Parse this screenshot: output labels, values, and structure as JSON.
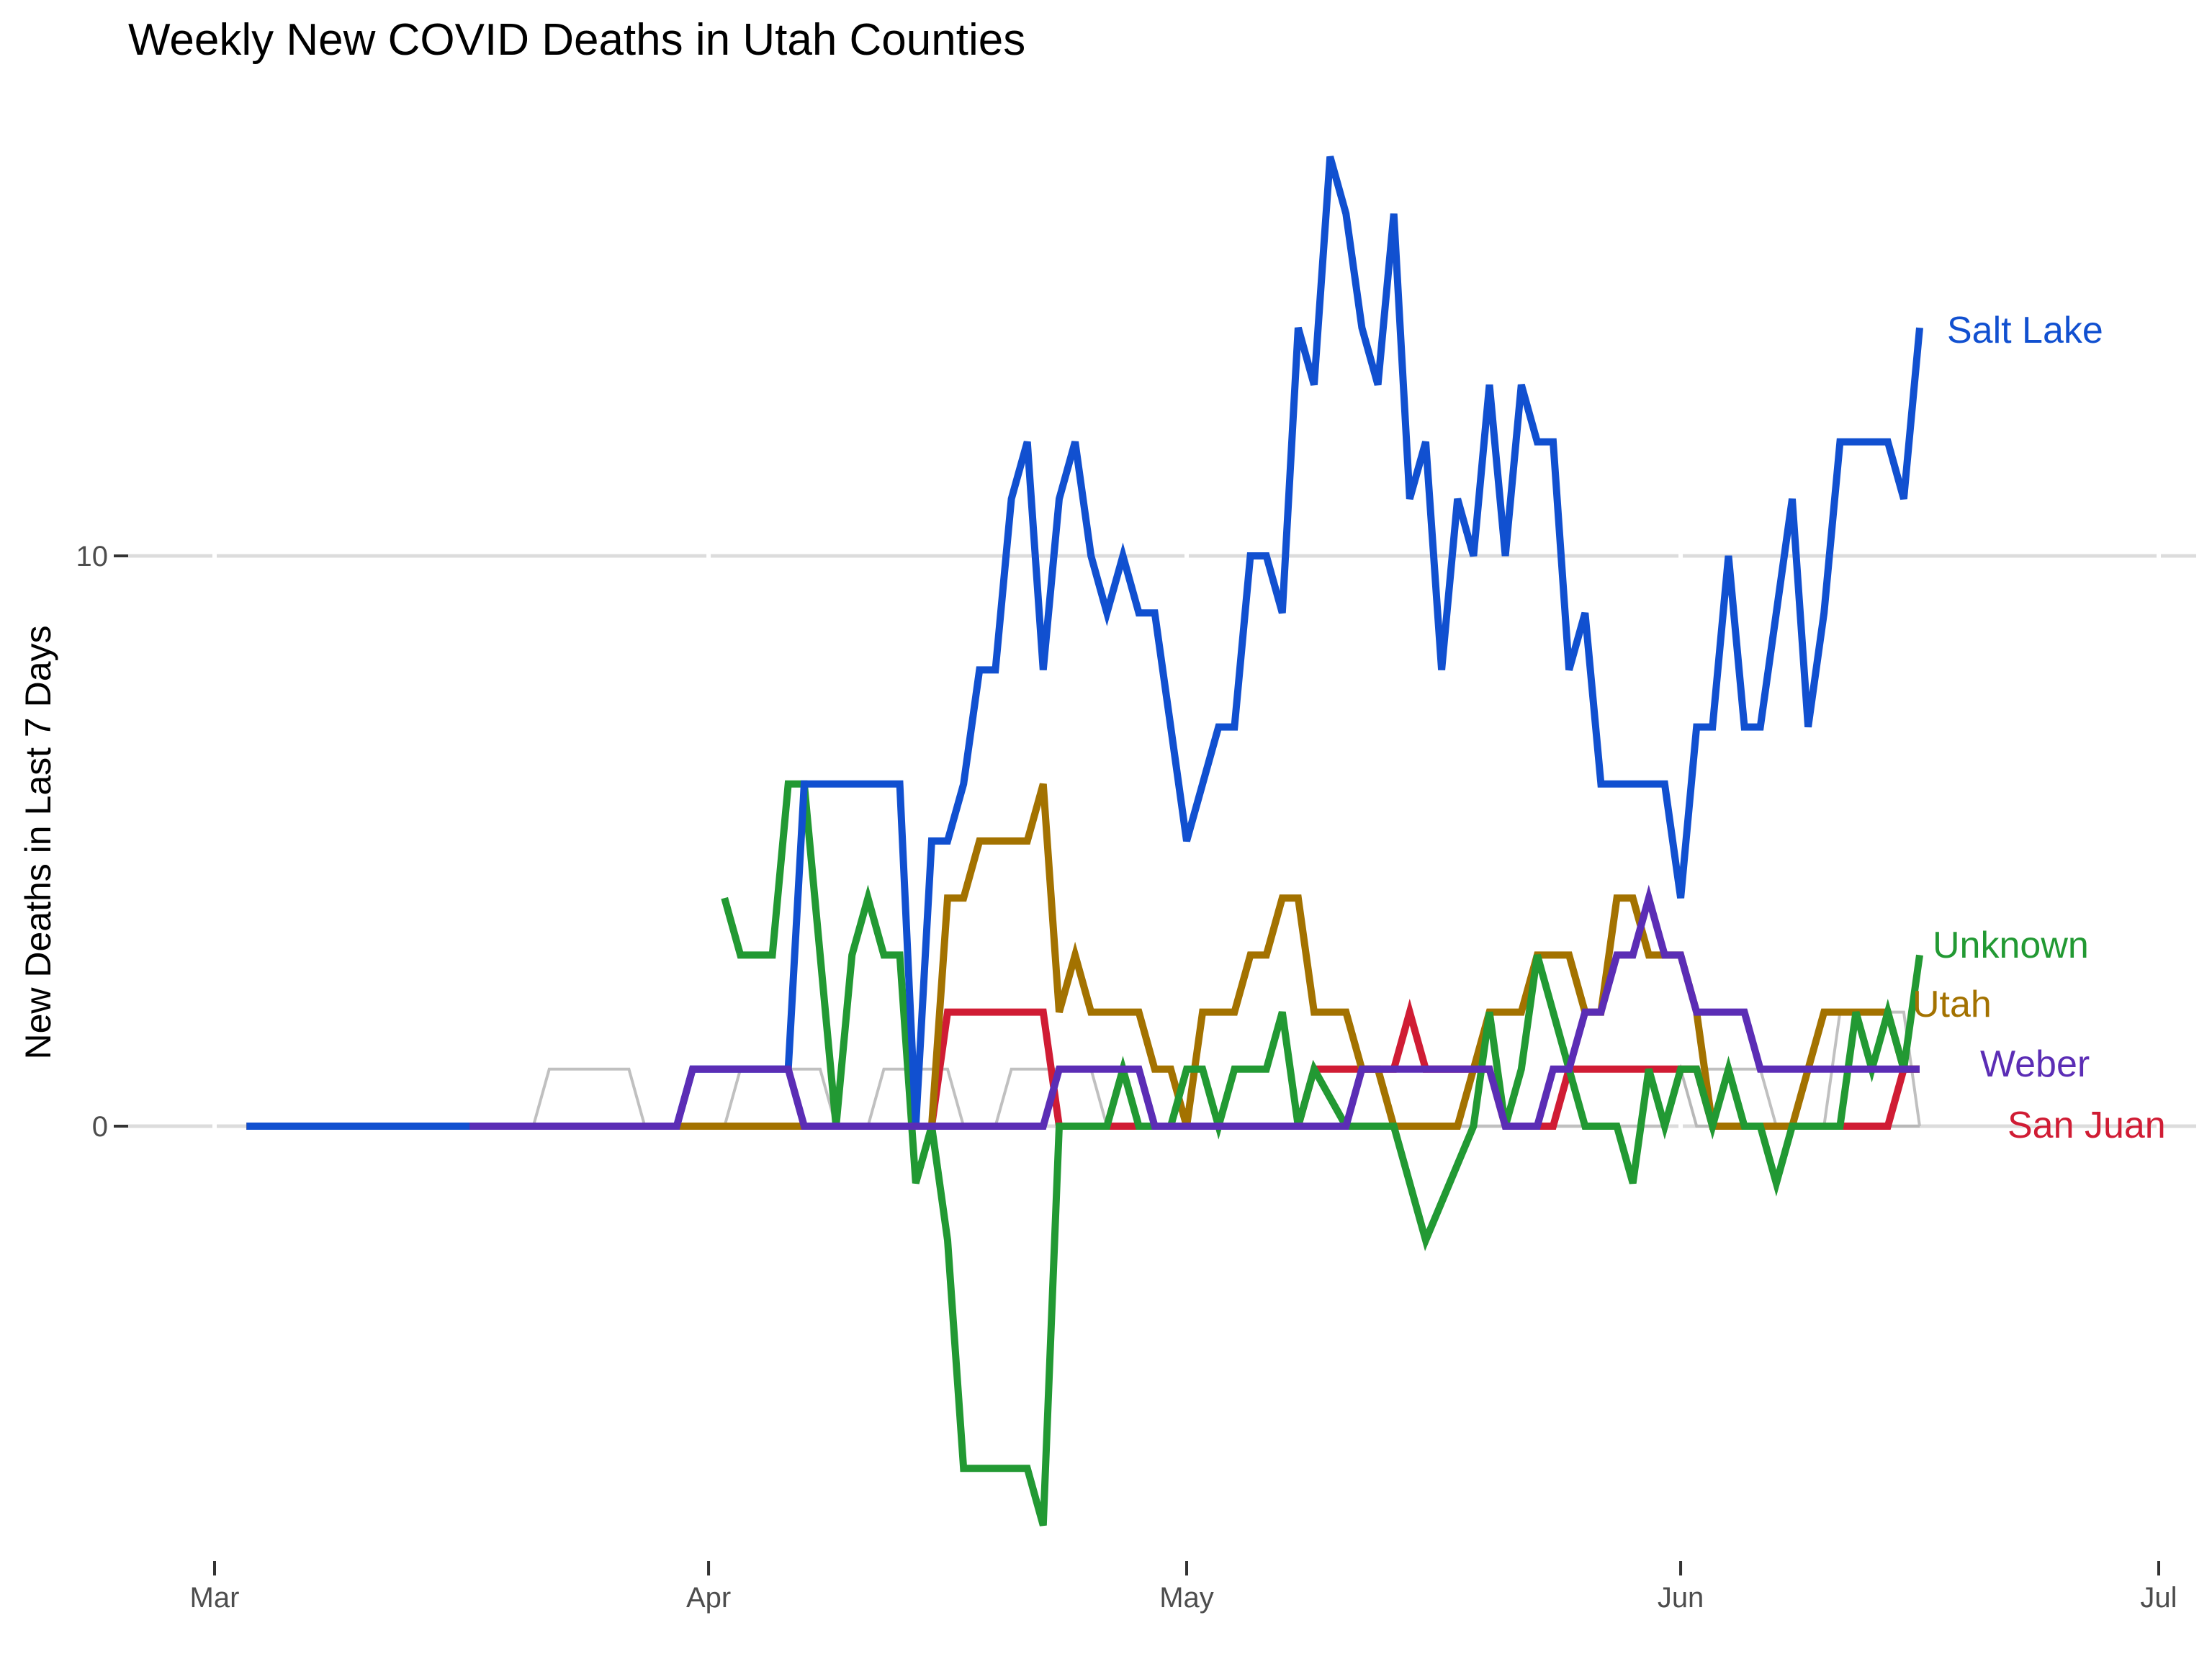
{
  "chart_data": {
    "type": "line",
    "title": "Weekly New COVID Deaths in Utah Counties",
    "xlabel": "",
    "ylabel": "New Deaths in Last 7 Days",
    "x_ticks": [
      {
        "label": "Mar",
        "date": "2020-03-01"
      },
      {
        "label": "Apr",
        "date": "2020-04-01"
      },
      {
        "label": "May",
        "date": "2020-05-01"
      },
      {
        "label": "Jun",
        "date": "2020-06-01"
      },
      {
        "label": "Jul",
        "date": "2020-07-01"
      }
    ],
    "y_ticks": [
      0,
      10
    ],
    "xlim": [
      "2020-03-01",
      "2020-07-01"
    ],
    "ylim": [
      -7.5,
      17.5
    ],
    "grid": true,
    "legend": "direct labels at line ends (right)",
    "background_series_color": "#c0c0c0",
    "series": [
      {
        "name": "Salt Lake",
        "color": "#1150d0",
        "points": [
          [
            "2020-03-03",
            0
          ],
          [
            "2020-03-30",
            0
          ],
          [
            "2020-03-31",
            1
          ],
          [
            "2020-04-06",
            1
          ],
          [
            "2020-04-07",
            6
          ],
          [
            "2020-04-13",
            6
          ],
          [
            "2020-04-14",
            0
          ],
          [
            "2020-04-15",
            5
          ],
          [
            "2020-04-16",
            5
          ],
          [
            "2020-04-17",
            6
          ],
          [
            "2020-04-18",
            8
          ],
          [
            "2020-04-19",
            8
          ],
          [
            "2020-04-20",
            11
          ],
          [
            "2020-04-21",
            12
          ],
          [
            "2020-04-22",
            8
          ],
          [
            "2020-04-23",
            11
          ],
          [
            "2020-04-24",
            12
          ],
          [
            "2020-04-25",
            10
          ],
          [
            "2020-04-26",
            9
          ],
          [
            "2020-04-27",
            10
          ],
          [
            "2020-04-28",
            9
          ],
          [
            "2020-04-29",
            9
          ],
          [
            "2020-04-30",
            7
          ],
          [
            "2020-05-01",
            5
          ],
          [
            "2020-05-02",
            6
          ],
          [
            "2020-05-03",
            7
          ],
          [
            "2020-05-04",
            7
          ],
          [
            "2020-05-05",
            10
          ],
          [
            "2020-05-06",
            10
          ],
          [
            "2020-05-07",
            9
          ],
          [
            "2020-05-08",
            14
          ],
          [
            "2020-05-09",
            13
          ],
          [
            "2020-05-10",
            17
          ],
          [
            "2020-05-11",
            16
          ],
          [
            "2020-05-12",
            14
          ],
          [
            "2020-05-13",
            13
          ],
          [
            "2020-05-14",
            16
          ],
          [
            "2020-05-15",
            11
          ],
          [
            "2020-05-16",
            12
          ],
          [
            "2020-05-17",
            8
          ],
          [
            "2020-05-18",
            11
          ],
          [
            "2020-05-19",
            10
          ],
          [
            "2020-05-20",
            13
          ],
          [
            "2020-05-21",
            10
          ],
          [
            "2020-05-22",
            13
          ],
          [
            "2020-05-23",
            12
          ],
          [
            "2020-05-24",
            12
          ],
          [
            "2020-05-25",
            8
          ],
          [
            "2020-05-26",
            9
          ],
          [
            "2020-05-27",
            6
          ],
          [
            "2020-05-31",
            6
          ],
          [
            "2020-06-01",
            4
          ],
          [
            "2020-06-02",
            7
          ],
          [
            "2020-06-03",
            7
          ],
          [
            "2020-06-04",
            10
          ],
          [
            "2020-06-05",
            7
          ],
          [
            "2020-06-06",
            7
          ],
          [
            "2020-06-07",
            9
          ],
          [
            "2020-06-08",
            11
          ],
          [
            "2020-06-09",
            7
          ],
          [
            "2020-06-10",
            9
          ],
          [
            "2020-06-11",
            12
          ],
          [
            "2020-06-14",
            12
          ],
          [
            "2020-06-15",
            11
          ],
          [
            "2020-06-16",
            14
          ]
        ]
      },
      {
        "name": "Unknown",
        "color": "#229933",
        "points": [
          [
            "2020-04-02",
            4
          ],
          [
            "2020-04-03",
            3
          ],
          [
            "2020-04-05",
            3
          ],
          [
            "2020-04-06",
            6
          ],
          [
            "2020-04-07",
            6
          ],
          [
            "2020-04-09",
            0
          ],
          [
            "2020-04-10",
            3
          ],
          [
            "2020-04-11",
            4
          ],
          [
            "2020-04-12",
            3
          ],
          [
            "2020-04-13",
            3
          ],
          [
            "2020-04-14",
            -1
          ],
          [
            "2020-04-15",
            0
          ],
          [
            "2020-04-16",
            -2
          ],
          [
            "2020-04-17",
            -6
          ],
          [
            "2020-04-21",
            -6
          ],
          [
            "2020-04-22",
            -7
          ],
          [
            "2020-04-23",
            0
          ],
          [
            "2020-04-26",
            0
          ],
          [
            "2020-04-27",
            1
          ],
          [
            "2020-04-28",
            0
          ],
          [
            "2020-04-30",
            0
          ],
          [
            "2020-05-01",
            1
          ],
          [
            "2020-05-02",
            1
          ],
          [
            "2020-05-03",
            0
          ],
          [
            "2020-05-04",
            1
          ],
          [
            "2020-05-06",
            1
          ],
          [
            "2020-05-07",
            2
          ],
          [
            "2020-05-08",
            0
          ],
          [
            "2020-05-09",
            1
          ],
          [
            "2020-05-11",
            0
          ],
          [
            "2020-05-14",
            0
          ],
          [
            "2020-05-16",
            -2
          ],
          [
            "2020-05-19",
            0
          ],
          [
            "2020-05-20",
            2
          ],
          [
            "2020-05-21",
            0
          ],
          [
            "2020-05-22",
            1
          ],
          [
            "2020-05-23",
            3
          ],
          [
            "2020-05-25",
            1
          ],
          [
            "2020-05-26",
            0
          ],
          [
            "2020-05-28",
            0
          ],
          [
            "2020-05-29",
            -1
          ],
          [
            "2020-05-30",
            1
          ],
          [
            "2020-05-31",
            0
          ],
          [
            "2020-06-01",
            1
          ],
          [
            "2020-06-02",
            1
          ],
          [
            "2020-06-03",
            0
          ],
          [
            "2020-06-04",
            1
          ],
          [
            "2020-06-05",
            0
          ],
          [
            "2020-06-06",
            0
          ],
          [
            "2020-06-07",
            -1
          ],
          [
            "2020-06-08",
            0
          ],
          [
            "2020-06-11",
            0
          ],
          [
            "2020-06-12",
            2
          ],
          [
            "2020-06-13",
            1
          ],
          [
            "2020-06-14",
            2
          ],
          [
            "2020-06-15",
            1
          ],
          [
            "2020-06-16",
            3
          ]
        ]
      },
      {
        "name": "Utah",
        "color": "#a37200",
        "points": [
          [
            "2020-03-03",
            0
          ],
          [
            "2020-04-15",
            0
          ],
          [
            "2020-04-16",
            4
          ],
          [
            "2020-04-17",
            4
          ],
          [
            "2020-04-18",
            5
          ],
          [
            "2020-04-21",
            5
          ],
          [
            "2020-04-22",
            6
          ],
          [
            "2020-04-23",
            2
          ],
          [
            "2020-04-24",
            3
          ],
          [
            "2020-04-25",
            2
          ],
          [
            "2020-04-28",
            2
          ],
          [
            "2020-04-29",
            1
          ],
          [
            "2020-04-30",
            1
          ],
          [
            "2020-05-01",
            0
          ],
          [
            "2020-05-02",
            2
          ],
          [
            "2020-05-04",
            2
          ],
          [
            "2020-05-05",
            3
          ],
          [
            "2020-05-06",
            3
          ],
          [
            "2020-05-07",
            4
          ],
          [
            "2020-05-08",
            4
          ],
          [
            "2020-05-09",
            2
          ],
          [
            "2020-05-11",
            2
          ],
          [
            "2020-05-12",
            1
          ],
          [
            "2020-05-13",
            1
          ],
          [
            "2020-05-14",
            0
          ],
          [
            "2020-05-18",
            0
          ],
          [
            "2020-05-19",
            1
          ],
          [
            "2020-05-20",
            2
          ],
          [
            "2020-05-22",
            2
          ],
          [
            "2020-05-23",
            3
          ],
          [
            "2020-05-25",
            3
          ],
          [
            "2020-05-26",
            2
          ],
          [
            "2020-05-27",
            2
          ],
          [
            "2020-05-28",
            4
          ],
          [
            "2020-05-29",
            4
          ],
          [
            "2020-05-30",
            3
          ],
          [
            "2020-06-01",
            3
          ],
          [
            "2020-06-02",
            2
          ],
          [
            "2020-06-03",
            0
          ],
          [
            "2020-06-08",
            0
          ],
          [
            "2020-06-09",
            1
          ],
          [
            "2020-06-10",
            2
          ],
          [
            "2020-06-14",
            2
          ],
          [
            "2020-06-15",
            1
          ],
          [
            "2020-06-16",
            1
          ]
        ]
      },
      {
        "name": "Weber",
        "color": "#5b2db5",
        "points": [
          [
            "2020-03-17",
            0
          ],
          [
            "2020-03-30",
            0
          ],
          [
            "2020-03-31",
            1
          ],
          [
            "2020-04-06",
            1
          ],
          [
            "2020-04-07",
            0
          ],
          [
            "2020-04-22",
            0
          ],
          [
            "2020-04-23",
            1
          ],
          [
            "2020-04-28",
            1
          ],
          [
            "2020-04-29",
            0
          ],
          [
            "2020-05-11",
            0
          ],
          [
            "2020-05-12",
            1
          ],
          [
            "2020-05-20",
            1
          ],
          [
            "2020-05-21",
            0
          ],
          [
            "2020-05-23",
            0
          ],
          [
            "2020-05-24",
            1
          ],
          [
            "2020-05-25",
            1
          ],
          [
            "2020-05-26",
            2
          ],
          [
            "2020-05-27",
            2
          ],
          [
            "2020-05-28",
            3
          ],
          [
            "2020-05-29",
            3
          ],
          [
            "2020-05-30",
            4
          ],
          [
            "2020-05-31",
            3
          ],
          [
            "2020-06-01",
            3
          ],
          [
            "2020-06-02",
            2
          ],
          [
            "2020-06-05",
            2
          ],
          [
            "2020-06-06",
            1
          ],
          [
            "2020-06-16",
            1
          ]
        ]
      },
      {
        "name": "San Juan",
        "color": "#d01c34",
        "points": [
          [
            "2020-03-03",
            0
          ],
          [
            "2020-04-15",
            0
          ],
          [
            "2020-04-16",
            2
          ],
          [
            "2020-04-22",
            2
          ],
          [
            "2020-04-23",
            0
          ],
          [
            "2020-05-08",
            0
          ],
          [
            "2020-05-09",
            1
          ],
          [
            "2020-05-14",
            1
          ],
          [
            "2020-05-15",
            2
          ],
          [
            "2020-05-16",
            1
          ],
          [
            "2020-05-20",
            1
          ],
          [
            "2020-05-21",
            0
          ],
          [
            "2020-05-24",
            0
          ],
          [
            "2020-05-25",
            1
          ],
          [
            "2020-06-02",
            1
          ],
          [
            "2020-06-03",
            0
          ],
          [
            "2020-06-14",
            0
          ],
          [
            "2020-06-15",
            1
          ],
          [
            "2020-06-16",
            1
          ]
        ]
      },
      {
        "name": "",
        "color": "#c0c0c0",
        "points": [
          [
            "2020-03-13",
            0
          ],
          [
            "2020-03-21",
            0
          ],
          [
            "2020-03-22",
            1
          ],
          [
            "2020-03-27",
            1
          ],
          [
            "2020-03-28",
            0
          ],
          [
            "2020-04-02",
            0
          ],
          [
            "2020-04-03",
            1
          ],
          [
            "2020-04-08",
            1
          ],
          [
            "2020-04-09",
            0
          ],
          [
            "2020-04-11",
            0
          ],
          [
            "2020-04-12",
            1
          ],
          [
            "2020-04-16",
            1
          ],
          [
            "2020-04-17",
            0
          ],
          [
            "2020-04-19",
            0
          ],
          [
            "2020-04-20",
            1
          ],
          [
            "2020-04-25",
            1
          ],
          [
            "2020-04-26",
            0
          ],
          [
            "2020-05-31",
            0
          ],
          [
            "2020-06-01",
            1
          ],
          [
            "2020-06-06",
            1
          ],
          [
            "2020-06-07",
            0
          ],
          [
            "2020-06-10",
            0
          ],
          [
            "2020-06-11",
            2
          ],
          [
            "2020-06-15",
            2
          ],
          [
            "2020-06-16",
            0
          ]
        ]
      },
      {
        "name": "",
        "color": "#b8b8b8",
        "points": [
          [
            "2020-05-31",
            0
          ],
          [
            "2020-06-01",
            1
          ],
          [
            "2020-06-02",
            0
          ],
          [
            "2020-06-16",
            0
          ]
        ]
      }
    ]
  }
}
